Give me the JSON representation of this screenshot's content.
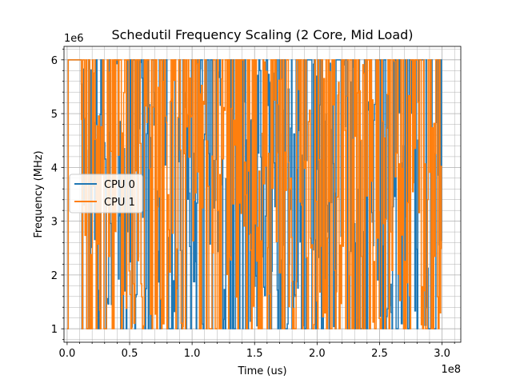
{
  "chart_data": {
    "type": "line",
    "title": "Schedutil Frequency Scaling (2 Core, Mid Load)",
    "xlabel": "Time (us)",
    "ylabel": "Frequency (MHz)",
    "x_offset_label": "1e8",
    "y_offset_label": "1e6",
    "xlim": [
      -2500000.0,
      315000000.0
    ],
    "ylim": [
      750000,
      6250000
    ],
    "x_ticks": [
      0,
      50000000.0,
      100000000.0,
      150000000.0,
      200000000.0,
      250000000.0,
      300000000.0
    ],
    "x_tick_labels": [
      "0.0",
      "0.5",
      "1.0",
      "1.5",
      "2.0",
      "2.5",
      "3.0"
    ],
    "y_ticks": [
      1000000,
      2000000,
      3000000,
      4000000,
      5000000,
      6000000
    ],
    "y_tick_labels": [
      "1",
      "2",
      "3",
      "4",
      "5",
      "6"
    ],
    "grid": true,
    "legend_position": "center-left",
    "x_range": [
      0,
      300000000.0
    ],
    "freq_range": [
      1000000,
      6000000
    ],
    "series": [
      {
        "name": "CPU 0",
        "color": "#1f77b4"
      },
      {
        "name": "CPU 1",
        "color": "#ff7f0e"
      }
    ]
  }
}
